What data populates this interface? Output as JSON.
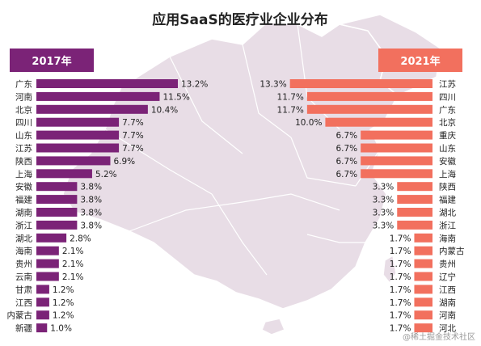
{
  "title": "应用SaaS的医疗业企业分布",
  "watermark": "@稀土掘金技术社区",
  "colors": {
    "left_bar": "#7b2377",
    "right_bar": "#f2705e",
    "map_fill": "#e8dde6",
    "map_stroke": "#ffffff",
    "text": "#222222"
  },
  "chart_data": [
    {
      "type": "bar",
      "orientation": "horizontal",
      "legend_label": "2017年",
      "categories": [
        "广东",
        "河南",
        "北京",
        "四川",
        "山东",
        "江苏",
        "陕西",
        "上海",
        "安徽",
        "福建",
        "湖南",
        "浙江",
        "湖北",
        "海南",
        "贵州",
        "云南",
        "甘肃",
        "江西",
        "内蒙古",
        "新疆"
      ],
      "values": [
        13.2,
        11.5,
        10.4,
        7.7,
        7.7,
        7.7,
        6.9,
        5.2,
        3.8,
        3.8,
        3.8,
        3.8,
        2.8,
        2.1,
        2.1,
        2.1,
        1.2,
        1.2,
        1.2,
        1.0
      ],
      "labels": [
        "13.2%",
        "11.5%",
        "10.4%",
        "7.7%",
        "7.7%",
        "7.7%",
        "6.9%",
        "5.2%",
        "3.8%",
        "3.8%",
        "3.8%",
        "3.8%",
        "2.8%",
        "2.1%",
        "2.1%",
        "2.1%",
        "1.2%",
        "1.2%",
        "1.2%",
        "1.0%"
      ],
      "unit": "%",
      "legend_placement": "top-left"
    },
    {
      "type": "bar",
      "orientation": "horizontal",
      "legend_label": "2021年",
      "categories": [
        "江苏",
        "四川",
        "广东",
        "北京",
        "重庆",
        "山东",
        "安徽",
        "上海",
        "陕西",
        "福建",
        "湖北",
        "浙江",
        "海南",
        "内蒙古",
        "贵州",
        "辽宁",
        "江西",
        "湖南",
        "河南",
        "河北"
      ],
      "values": [
        13.3,
        11.7,
        11.7,
        10.0,
        6.7,
        6.7,
        6.7,
        6.7,
        3.3,
        3.3,
        3.3,
        3.3,
        1.7,
        1.7,
        1.7,
        1.7,
        1.7,
        1.7,
        1.7,
        1.7
      ],
      "labels": [
        "13.3%",
        "11.7%",
        "11.7%",
        "10.0%",
        "6.7%",
        "6.7%",
        "6.7%",
        "6.7%",
        "3.3%",
        "3.3%",
        "3.3%",
        "3.3%",
        "1.7%",
        "1.7%",
        "1.7%",
        "1.7%",
        "1.7%",
        "1.7%",
        "1.7%",
        "1.7%"
      ],
      "unit": "%",
      "legend_placement": "top-right"
    }
  ]
}
